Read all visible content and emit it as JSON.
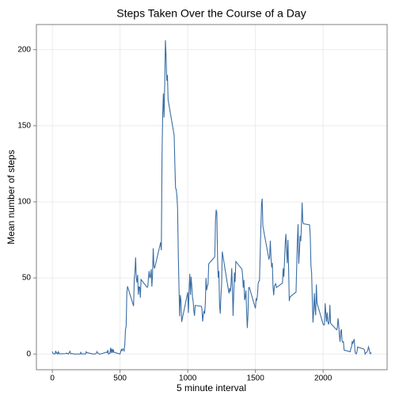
{
  "chart_data": {
    "type": "line",
    "title": "Steps Taken Over the Course of a Day",
    "x_label": "5 minute interval",
    "y_label": "Mean number of steps",
    "xlim": [
      -117.75,
      2472.75
    ],
    "ylim": [
      -10.3,
      216.5
    ],
    "xticks": [
      0,
      500,
      1000,
      1500,
      2000
    ],
    "yticks": [
      0,
      50,
      100,
      150,
      200
    ],
    "grid": true,
    "series": [
      {
        "color": "#3b6ea5",
        "x": [
          0,
          5,
          10,
          15,
          20,
          25,
          30,
          35,
          40,
          45,
          50,
          55,
          100,
          105,
          110,
          115,
          120,
          125,
          130,
          135,
          140,
          145,
          150,
          155,
          200,
          205,
          210,
          215,
          220,
          225,
          230,
          235,
          240,
          245,
          250,
          255,
          300,
          305,
          310,
          315,
          320,
          325,
          330,
          335,
          340,
          345,
          350,
          355,
          400,
          405,
          410,
          415,
          420,
          425,
          430,
          435,
          440,
          445,
          450,
          455,
          500,
          505,
          510,
          515,
          520,
          525,
          530,
          535,
          540,
          545,
          550,
          555,
          600,
          605,
          610,
          615,
          620,
          625,
          630,
          635,
          640,
          645,
          650,
          655,
          700,
          705,
          710,
          715,
          720,
          725,
          730,
          735,
          740,
          745,
          750,
          755,
          800,
          805,
          810,
          815,
          820,
          825,
          830,
          835,
          840,
          845,
          850,
          855,
          900,
          905,
          910,
          915,
          920,
          925,
          930,
          935,
          940,
          945,
          950,
          955,
          1000,
          1005,
          1010,
          1015,
          1020,
          1025,
          1030,
          1035,
          1040,
          1045,
          1050,
          1055,
          1100,
          1105,
          1110,
          1115,
          1120,
          1125,
          1130,
          1135,
          1140,
          1145,
          1150,
          1155,
          1200,
          1205,
          1210,
          1215,
          1220,
          1225,
          1230,
          1235,
          1240,
          1245,
          1250,
          1255,
          1300,
          1305,
          1310,
          1315,
          1320,
          1325,
          1330,
          1335,
          1340,
          1345,
          1350,
          1355,
          1400,
          1405,
          1410,
          1415,
          1420,
          1425,
          1430,
          1435,
          1440,
          1445,
          1450,
          1455,
          1500,
          1505,
          1510,
          1515,
          1520,
          1525,
          1530,
          1535,
          1540,
          1545,
          1550,
          1555,
          1600,
          1605,
          1610,
          1615,
          1620,
          1625,
          1630,
          1635,
          1640,
          1645,
          1650,
          1655,
          1700,
          1705,
          1710,
          1715,
          1720,
          1725,
          1730,
          1735,
          1740,
          1745,
          1750,
          1755,
          1800,
          1805,
          1810,
          1815,
          1820,
          1825,
          1830,
          1835,
          1840,
          1845,
          1850,
          1855,
          1900,
          1905,
          1910,
          1915,
          1920,
          1925,
          1930,
          1935,
          1940,
          1945,
          1950,
          1955,
          2000,
          2005,
          2010,
          2015,
          2020,
          2025,
          2030,
          2035,
          2040,
          2045,
          2050,
          2055,
          2100,
          2105,
          2110,
          2115,
          2120,
          2125,
          2130,
          2135,
          2140,
          2145,
          2150,
          2155,
          2200,
          2205,
          2210,
          2215,
          2220,
          2225,
          2230,
          2235,
          2240,
          2245,
          2250,
          2255,
          2300,
          2305,
          2310,
          2315,
          2320,
          2325,
          2330,
          2335,
          2340,
          2345,
          2350,
          2355
        ],
        "values": [
          1.7,
          0.3,
          0.1,
          0.2,
          0.1,
          2.1,
          0.5,
          0.9,
          0,
          1.5,
          0.3,
          0.1,
          0.3,
          0.7,
          0.2,
          0.3,
          0,
          1.1,
          1.8,
          0.2,
          0.2,
          0.4,
          0.3,
          0,
          0,
          0,
          1.1,
          0,
          0,
          0.1,
          0,
          0.2,
          0,
          0,
          1.5,
          0.9,
          0,
          0,
          0,
          0,
          0.2,
          0.6,
          1.6,
          0.6,
          0.5,
          0.1,
          0,
          0,
          1.2,
          0.9,
          2.6,
          0,
          0.3,
          0.4,
          4.1,
          0.7,
          3.5,
          0.8,
          3.1,
          1.1,
          0,
          1.6,
          3.0,
          2.2,
          3.3,
          3.0,
          2.1,
          6.1,
          16.0,
          18.3,
          39.5,
          44.5,
          31.5,
          49.3,
          53.8,
          63.5,
          50.0,
          47.0,
          52.0,
          39.0,
          44.0,
          44.0,
          37.0,
          49.0,
          43.8,
          44.4,
          50.5,
          54.5,
          49.9,
          51.0,
          55.7,
          44.3,
          52.3,
          69.5,
          57.8,
          56.2,
          73.4,
          68.2,
          129.4,
          157.5,
          171.2,
          155.4,
          177.3,
          206.2,
          195.9,
          179.6,
          183.4,
          167.0,
          143.5,
          124.0,
          109.1,
          108.1,
          103.7,
          96.0,
          66.2,
          45.2,
          24.8,
          38.8,
          35.0,
          21.1,
          40.6,
          27.0,
          42.4,
          52.7,
          38.9,
          50.8,
          44.3,
          37.4,
          34.7,
          28.3,
          25.1,
          31.9,
          31.4,
          29.7,
          21.3,
          25.5,
          28.4,
          26.5,
          33.4,
          50.0,
          42.0,
          44.6,
          46.0,
          59.2,
          63.9,
          87.7,
          94.8,
          92.8,
          63.4,
          50.2,
          54.5,
          32.4,
          26.5,
          37.7,
          45.1,
          67.3,
          42.3,
          39.9,
          43.3,
          41.0,
          46.2,
          56.4,
          42.8,
          25.1,
          40.0,
          53.5,
          47.3,
          60.8,
          55.8,
          52.0,
          43.6,
          48.7,
          35.5,
          37.5,
          41.8,
          27.5,
          17.1,
          26.1,
          43.6,
          43.8,
          30.0,
          36.1,
          35.5,
          38.8,
          46.0,
          47.8,
          48.1,
          65.3,
          82.9,
          98.7,
          102.1,
          84.0,
          62.1,
          64.1,
          74.5,
          63.2,
          56.9,
          59.8,
          43.9,
          38.6,
          44.7,
          45.5,
          46.2,
          43.7,
          46.6,
          56.3,
          50.7,
          61.2,
          72.7,
          78.9,
          68.9,
          59.7,
          75.1,
          56.5,
          34.8,
          37.5,
          40.7,
          58.0,
          74.7,
          85.3,
          59.3,
          67.8,
          77.7,
          74.2,
          85.3,
          99.5,
          86.6,
          85.6,
          84.9,
          77.8,
          58.0,
          53.4,
          36.3,
          20.7,
          27.4,
          40.0,
          30.2,
          25.5,
          45.7,
          33.5,
          19.6,
          19.0,
          19.3,
          33.3,
          26.8,
          21.2,
          27.3,
          21.3,
          19.5,
          21.3,
          32.3,
          20.2,
          15.9,
          17.2,
          23.5,
          19.2,
          12.5,
          8.0,
          14.7,
          16.3,
          8.7,
          7.8,
          8.1,
          2.6,
          1.5,
          3.7,
          4.8,
          8.5,
          7.1,
          8.7,
          9.8,
          2.2,
          0.3,
          0.1,
          1.6,
          4.6,
          3.3,
          2.8,
          0,
          0.8,
          1.0,
          1.6,
          2.6,
          4.7,
          3.3,
          0.6,
          0.2,
          1.1
        ]
      }
    ]
  }
}
